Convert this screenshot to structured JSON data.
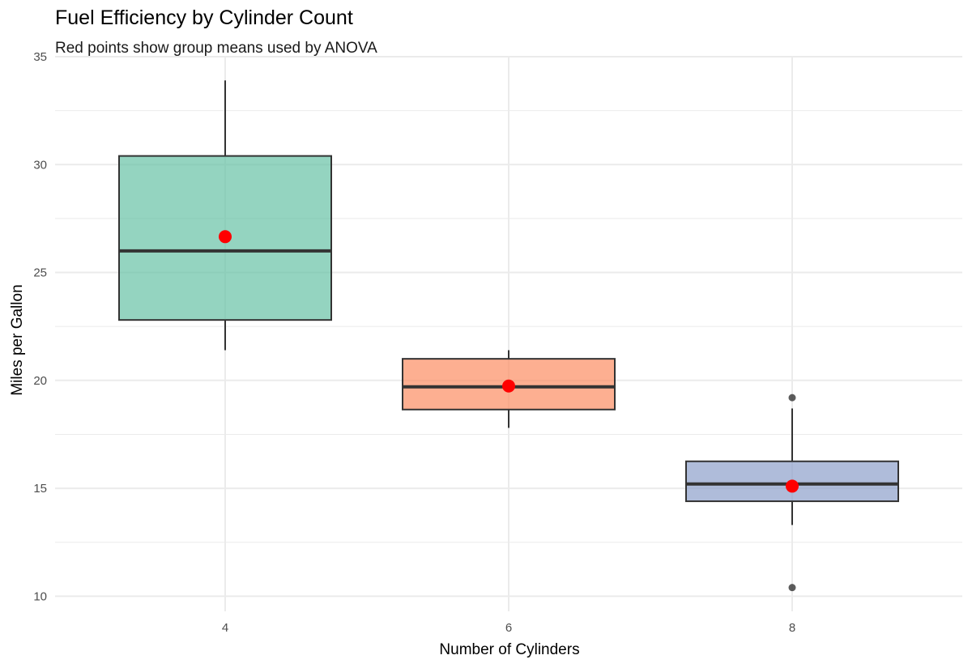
{
  "chart_data": {
    "type": "box",
    "title": "Fuel Efficiency by Cylinder Count",
    "subtitle": "Red points show group means used by ANOVA",
    "xlabel": "Number of Cylinders",
    "ylabel": "Miles per Gallon",
    "categories": [
      "4",
      "6",
      "8"
    ],
    "ylim": [
      9.3,
      35
    ],
    "yticks": [
      10,
      15,
      20,
      25,
      30,
      35
    ],
    "grid": true,
    "legend": "none",
    "series": [
      {
        "category": "4",
        "min": 21.4,
        "q1": 22.8,
        "median": 26.0,
        "q3": 30.4,
        "max": 33.9,
        "mean": 26.66,
        "outliers": [],
        "color": "#66c2a5"
      },
      {
        "category": "6",
        "min": 17.8,
        "q1": 18.65,
        "median": 19.7,
        "q3": 21.0,
        "max": 21.4,
        "mean": 19.74,
        "outliers": [],
        "color": "#fc8d62"
      },
      {
        "category": "8",
        "min": 13.3,
        "q1": 14.4,
        "median": 15.2,
        "q3": 16.25,
        "max": 18.7,
        "mean": 15.1,
        "outliers": [
          19.2,
          10.4
        ],
        "color": "#8da0cb"
      }
    ],
    "mean_marker_color": "#ff0000"
  }
}
